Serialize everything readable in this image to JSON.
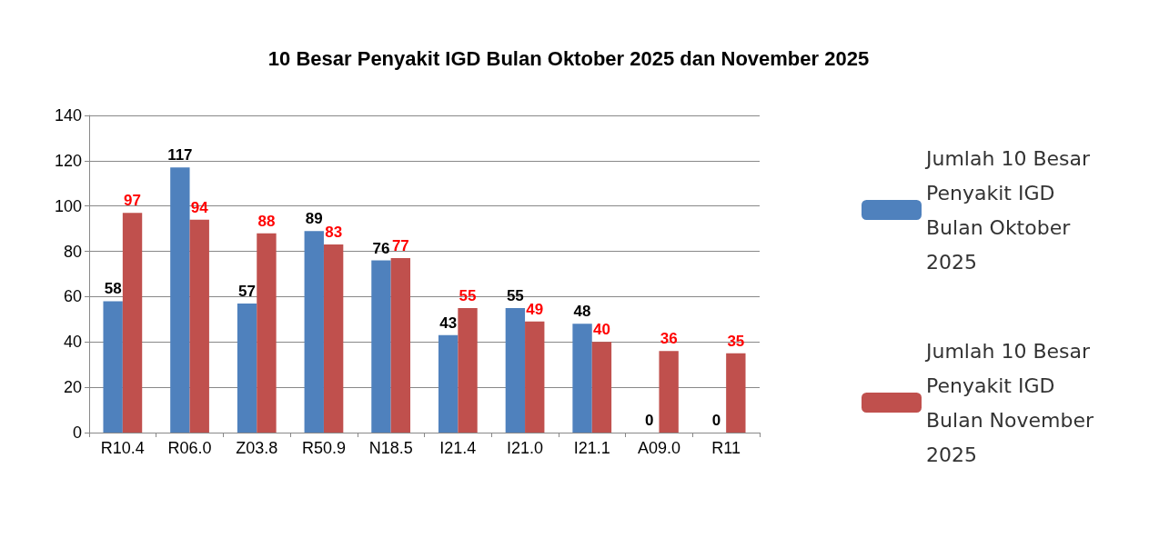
{
  "chart_data": {
    "type": "bar",
    "title": "10 Besar Penyakit IGD Bulan Oktober 2025 dan November 2025",
    "categories": [
      "R10.4",
      "R06.0",
      "Z03.8",
      "R50.9",
      "N18.5",
      "I21.4",
      "I21.0",
      "I21.1",
      "A09.0",
      "R11"
    ],
    "series": [
      {
        "name": "Jumlah 10 Besar Penyakit IGD Bulan Oktober 2025",
        "color": "#4f81bd",
        "values": [
          58,
          117,
          57,
          89,
          76,
          43,
          55,
          48,
          0,
          0
        ]
      },
      {
        "name": "Jumlah 10 Besar Penyakit IGD Bulan November 2025",
        "color": "#c0504d",
        "values": [
          97,
          94,
          88,
          83,
          77,
          55,
          49,
          40,
          36,
          35
        ]
      }
    ],
    "ylim": [
      0,
      140
    ],
    "yticks": [
      0,
      20,
      40,
      60,
      80,
      100,
      120,
      140
    ],
    "grid": "y",
    "legend": "right",
    "data_labels": true
  }
}
